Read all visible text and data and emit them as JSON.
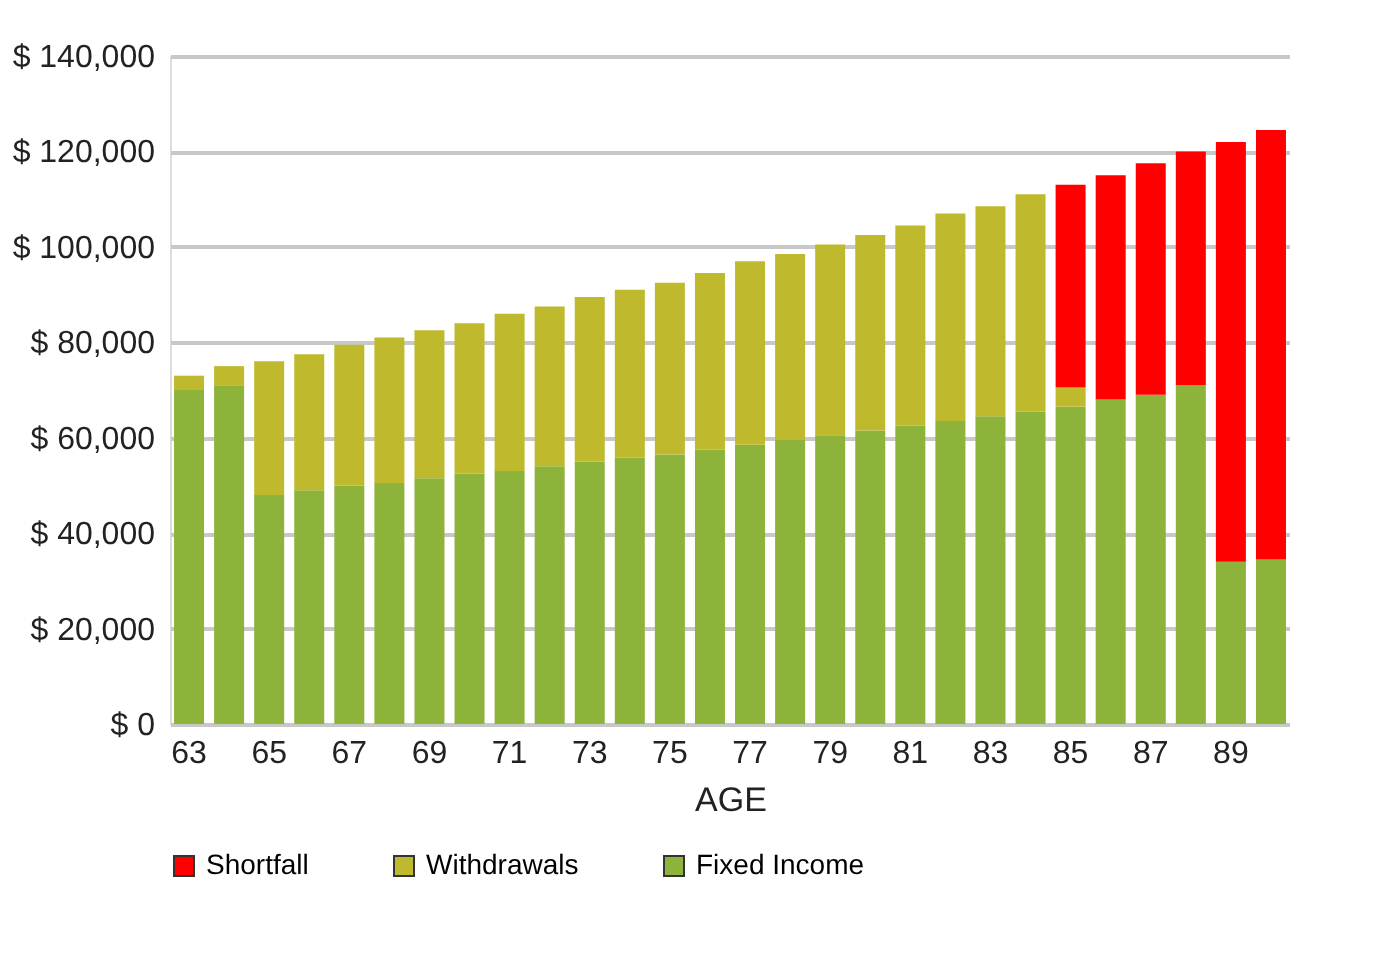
{
  "chart_data": {
    "type": "bar",
    "stacked": true,
    "xlabel": "AGE",
    "categories": [
      "63",
      null,
      "65",
      null,
      "67",
      null,
      "69",
      null,
      "71",
      null,
      "73",
      null,
      "75",
      null,
      "77",
      null,
      "79",
      null,
      "81",
      null,
      "83",
      null,
      "85",
      null,
      "87",
      null,
      "89",
      null
    ],
    "series": [
      {
        "name": "Fixed Income",
        "color": "#8db33a",
        "values": [
          70000,
          71000,
          48000,
          49000,
          50000,
          50500,
          51500,
          52500,
          53000,
          54000,
          55000,
          55800,
          56500,
          57500,
          58500,
          59500,
          60500,
          61500,
          62500,
          63500,
          64500,
          65500,
          66500,
          68000,
          69000,
          71000,
          34000,
          34500
        ]
      },
      {
        "name": "Withdrawals",
        "color": "#bfb92e",
        "values": [
          3000,
          4000,
          28000,
          28500,
          29500,
          30500,
          31000,
          31500,
          33000,
          33500,
          34500,
          35200,
          36000,
          37000,
          38500,
          39000,
          40000,
          41000,
          42000,
          43500,
          44000,
          45500,
          4000,
          null,
          null,
          null,
          null,
          null
        ]
      },
      {
        "name": "Shortfall",
        "color": "#ff0000",
        "values": [
          null,
          null,
          null,
          null,
          null,
          null,
          null,
          null,
          null,
          null,
          null,
          null,
          null,
          null,
          null,
          null,
          null,
          null,
          null,
          null,
          null,
          null,
          42500,
          47000,
          48500,
          49000,
          88000,
          90000
        ]
      }
    ],
    "ylim": [
      0,
      140000
    ],
    "yticks": [
      {
        "value": 0,
        "label": "$ 0"
      },
      {
        "value": 20000,
        "label": "$ 20,000"
      },
      {
        "value": 40000,
        "label": "$ 40,000"
      },
      {
        "value": 60000,
        "label": "$ 60,000"
      },
      {
        "value": 80000,
        "label": "$ 80,000"
      },
      {
        "value": 100000,
        "label": "$ 100,000"
      },
      {
        "value": 120000,
        "label": "$ 120,000"
      },
      {
        "value": 140000,
        "label": "$ 140,000"
      }
    ],
    "grid": "y",
    "legend": "bottom"
  }
}
